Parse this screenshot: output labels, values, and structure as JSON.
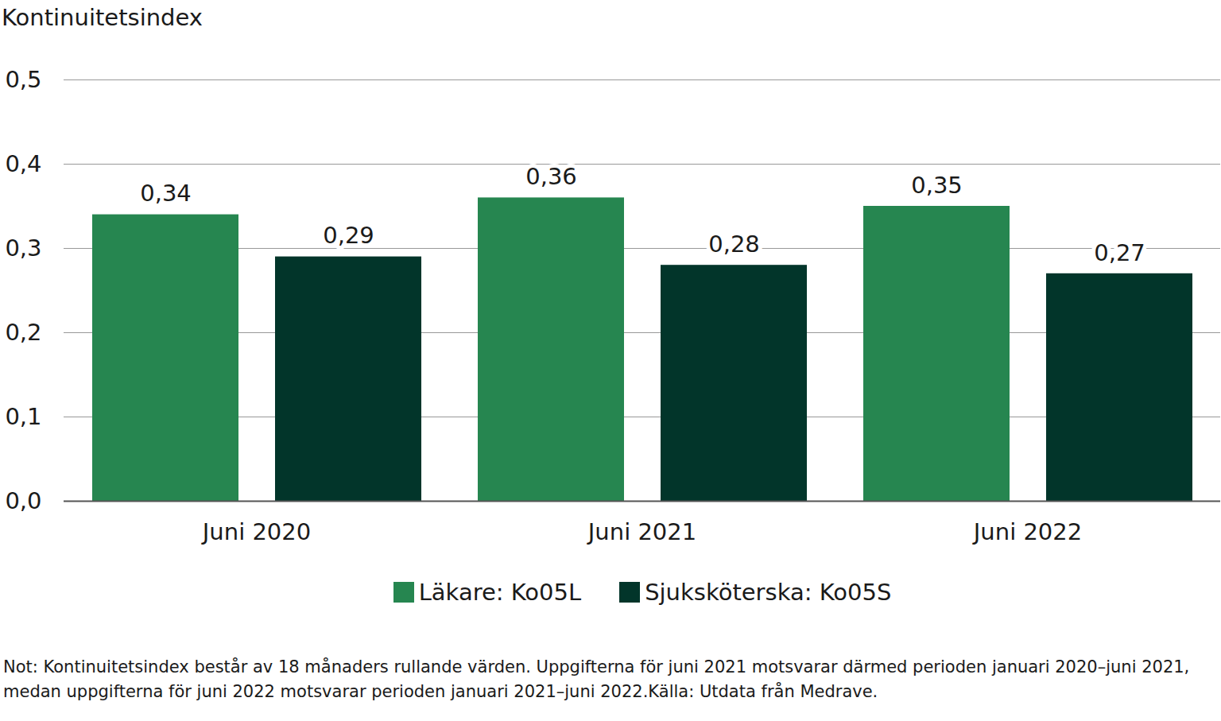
{
  "chart_data": {
    "type": "bar",
    "y_label": "Kontinuitetsindex",
    "categories": [
      "Juni 2020",
      "Juni 2021",
      "Juni 2022"
    ],
    "series": [
      {
        "name": "Läkare: Ko05L",
        "color": "#268650",
        "values": [
          0.34,
          0.36,
          0.35
        ],
        "value_labels": [
          "0,34",
          "0,36",
          "0,35"
        ]
      },
      {
        "name": "Sjuksköterska: Ko05S",
        "color": "#02352a",
        "values": [
          0.29,
          0.28,
          0.27
        ],
        "value_labels": [
          "0,29",
          "0,28",
          "0,27"
        ]
      }
    ],
    "ylim": [
      0,
      0.5
    ],
    "yticks": [
      {
        "value": 0,
        "label": "0,0"
      },
      {
        "value": 0.1,
        "label": "0,1"
      },
      {
        "value": 0.2,
        "label": "0,2"
      },
      {
        "value": 0.3,
        "label": "0,3"
      },
      {
        "value": 0.4,
        "label": "0,4"
      },
      {
        "value": 0.5,
        "label": "0,5"
      }
    ],
    "grid": true,
    "data_labels": true,
    "legend": "bottom",
    "caption": "Not: Kontinuitetsindex består av 18 månaders rullande värden. Uppgifterna för juni 2021 motsvarar därmed perioden januari 2020–juni 2021, medan uppgifterna för juni 2022 motsvarar perioden januari 2021–juni 2022.Källa: Utdata från Medrave."
  }
}
